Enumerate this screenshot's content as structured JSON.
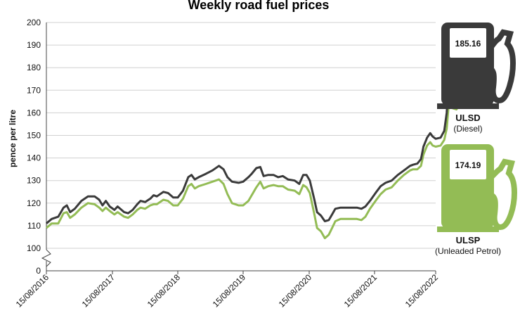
{
  "chart_data": {
    "type": "line",
    "title": "Weekly road fuel prices",
    "xlabel": "",
    "ylabel": "pence per litre",
    "x_ticks": [
      "15/08/2016",
      "15/08/2017",
      "15/08/2018",
      "15/08/2019",
      "15/08/2020",
      "15/08/2021",
      "15/08/2022"
    ],
    "y_ticks": [
      0,
      100,
      110,
      120,
      130,
      140,
      150,
      160,
      170,
      180,
      190,
      200
    ],
    "ylim": [
      0,
      200
    ],
    "y_axis_break": true,
    "grid": true,
    "series": [
      {
        "name": "ULSD",
        "color": "#3a3a3a",
        "points": [
          [
            2016.62,
            111.0
          ],
          [
            2016.7,
            113.0
          ],
          [
            2016.8,
            114.0
          ],
          [
            2016.88,
            118.0
          ],
          [
            2016.93,
            119.0
          ],
          [
            2016.98,
            116.0
          ],
          [
            2017.05,
            117.5
          ],
          [
            2017.15,
            121.0
          ],
          [
            2017.25,
            123.0
          ],
          [
            2017.35,
            123.0
          ],
          [
            2017.42,
            121.5
          ],
          [
            2017.47,
            119.0
          ],
          [
            2017.52,
            121.0
          ],
          [
            2017.58,
            118.5
          ],
          [
            2017.65,
            117.0
          ],
          [
            2017.7,
            118.5
          ],
          [
            2017.8,
            116.0
          ],
          [
            2017.86,
            115.5
          ],
          [
            2017.93,
            117.0
          ],
          [
            2018.0,
            119.5
          ],
          [
            2018.05,
            121.0
          ],
          [
            2018.12,
            120.5
          ],
          [
            2018.2,
            122.0
          ],
          [
            2018.25,
            123.5
          ],
          [
            2018.3,
            123.0
          ],
          [
            2018.4,
            125.0
          ],
          [
            2018.47,
            124.5
          ],
          [
            2018.55,
            122.5
          ],
          [
            2018.62,
            122.5
          ],
          [
            2018.7,
            125.5
          ],
          [
            2018.78,
            131.5
          ],
          [
            2018.83,
            132.5
          ],
          [
            2018.88,
            130.5
          ],
          [
            2018.94,
            131.5
          ],
          [
            2019.05,
            133.0
          ],
          [
            2019.15,
            134.5
          ],
          [
            2019.25,
            136.5
          ],
          [
            2019.32,
            135.0
          ],
          [
            2019.38,
            131.5
          ],
          [
            2019.45,
            129.5
          ],
          [
            2019.55,
            129.0
          ],
          [
            2019.62,
            129.5
          ],
          [
            2019.7,
            131.5
          ],
          [
            2019.75,
            133.0
          ],
          [
            2019.82,
            135.5
          ],
          [
            2019.88,
            136.0
          ],
          [
            2019.93,
            132.0
          ],
          [
            2020.0,
            132.5
          ],
          [
            2020.08,
            132.5
          ],
          [
            2020.15,
            131.5
          ],
          [
            2020.22,
            132.0
          ],
          [
            2020.3,
            130.5
          ],
          [
            2020.4,
            130.0
          ],
          [
            2020.47,
            128.5
          ],
          [
            2020.53,
            132.5
          ],
          [
            2020.58,
            132.5
          ],
          [
            2020.63,
            130.0
          ],
          [
            2020.7,
            121.5
          ],
          [
            2020.74,
            116.0
          ],
          [
            2020.8,
            114.5
          ],
          [
            2020.86,
            112.0
          ],
          [
            2020.92,
            112.5
          ],
          [
            2020.97,
            115.0
          ],
          [
            2021.02,
            117.5
          ],
          [
            2021.1,
            118.0
          ],
          [
            2021.2,
            118.0
          ],
          [
            2021.35,
            118.0
          ],
          [
            2021.42,
            117.5
          ],
          [
            2021.48,
            118.5
          ],
          [
            2021.55,
            121.0
          ],
          [
            2021.65,
            125.0
          ],
          [
            2021.72,
            127.5
          ],
          [
            2021.8,
            129.0
          ],
          [
            2021.9,
            130.0
          ],
          [
            2022.0,
            132.5
          ],
          [
            2022.1,
            134.5
          ],
          [
            2022.2,
            136.5
          ],
          [
            2022.25,
            137.0
          ],
          [
            2022.32,
            137.5
          ],
          [
            2022.38,
            139.5
          ],
          [
            2022.42,
            145.0
          ],
          [
            2022.48,
            149.0
          ],
          [
            2022.53,
            151.0
          ],
          [
            2022.57,
            149.5
          ],
          [
            2022.62,
            148.5
          ],
          [
            2022.7,
            149.0
          ],
          [
            2022.76,
            152.0
          ],
          [
            2022.8,
            160.0
          ],
          [
            2022.835,
            175.0
          ],
          [
            2022.86,
            176.0
          ],
          [
            2022.9,
            175.5
          ],
          [
            2022.96,
            177.0
          ],
          [
            2023.02,
            180.0
          ],
          [
            2023.07,
            185.0
          ],
          [
            2023.11,
            193.0
          ],
          [
            2023.15,
            199.0
          ],
          [
            2023.18,
            199.0
          ],
          [
            2023.21,
            196.0
          ],
          [
            2023.24,
            190.0
          ],
          [
            2023.27,
            185.0
          ]
        ]
      },
      {
        "name": "ULSP",
        "color": "#93bc55",
        "points": [
          [
            2016.62,
            109.0
          ],
          [
            2016.7,
            111.0
          ],
          [
            2016.8,
            111.0
          ],
          [
            2016.88,
            115.5
          ],
          [
            2016.93,
            116.0
          ],
          [
            2016.98,
            113.5
          ],
          [
            2017.05,
            115.0
          ],
          [
            2017.15,
            118.0
          ],
          [
            2017.25,
            120.0
          ],
          [
            2017.35,
            119.5
          ],
          [
            2017.42,
            118.0
          ],
          [
            2017.47,
            116.5
          ],
          [
            2017.52,
            118.0
          ],
          [
            2017.58,
            116.5
          ],
          [
            2017.65,
            115.0
          ],
          [
            2017.7,
            116.0
          ],
          [
            2017.8,
            114.0
          ],
          [
            2017.86,
            113.5
          ],
          [
            2017.93,
            115.0
          ],
          [
            2018.0,
            117.0
          ],
          [
            2018.05,
            118.0
          ],
          [
            2018.12,
            117.5
          ],
          [
            2018.2,
            119.0
          ],
          [
            2018.25,
            119.5
          ],
          [
            2018.3,
            119.5
          ],
          [
            2018.4,
            121.5
          ],
          [
            2018.47,
            121.0
          ],
          [
            2018.55,
            119.0
          ],
          [
            2018.62,
            119.0
          ],
          [
            2018.7,
            122.0
          ],
          [
            2018.78,
            127.5
          ],
          [
            2018.83,
            128.5
          ],
          [
            2018.88,
            126.5
          ],
          [
            2018.94,
            127.5
          ],
          [
            2019.05,
            128.5
          ],
          [
            2019.15,
            129.5
          ],
          [
            2019.25,
            130.5
          ],
          [
            2019.32,
            128.5
          ],
          [
            2019.38,
            124.0
          ],
          [
            2019.45,
            120.0
          ],
          [
            2019.55,
            119.0
          ],
          [
            2019.62,
            119.0
          ],
          [
            2019.7,
            121.0
          ],
          [
            2019.75,
            123.5
          ],
          [
            2019.82,
            127.0
          ],
          [
            2019.88,
            129.5
          ],
          [
            2019.93,
            126.5
          ],
          [
            2020.0,
            127.5
          ],
          [
            2020.08,
            128.0
          ],
          [
            2020.15,
            127.5
          ],
          [
            2020.22,
            127.5
          ],
          [
            2020.3,
            126.0
          ],
          [
            2020.4,
            125.5
          ],
          [
            2020.47,
            124.0
          ],
          [
            2020.53,
            128.0
          ],
          [
            2020.58,
            127.0
          ],
          [
            2020.63,
            124.5
          ],
          [
            2020.7,
            115.0
          ],
          [
            2020.74,
            109.0
          ],
          [
            2020.8,
            107.5
          ],
          [
            2020.86,
            104.5
          ],
          [
            2020.92,
            106.0
          ],
          [
            2020.97,
            109.0
          ],
          [
            2021.02,
            112.0
          ],
          [
            2021.1,
            113.0
          ],
          [
            2021.2,
            113.0
          ],
          [
            2021.35,
            113.0
          ],
          [
            2021.42,
            112.5
          ],
          [
            2021.48,
            114.0
          ],
          [
            2021.55,
            117.5
          ],
          [
            2021.65,
            121.5
          ],
          [
            2021.72,
            124.0
          ],
          [
            2021.8,
            126.0
          ],
          [
            2021.9,
            127.0
          ],
          [
            2022.0,
            130.0
          ],
          [
            2022.1,
            132.5
          ],
          [
            2022.2,
            134.5
          ],
          [
            2022.25,
            135.0
          ],
          [
            2022.32,
            135.0
          ],
          [
            2022.38,
            136.5
          ],
          [
            2022.42,
            141.5
          ],
          [
            2022.48,
            145.5
          ],
          [
            2022.53,
            147.0
          ],
          [
            2022.57,
            145.5
          ],
          [
            2022.62,
            145.0
          ],
          [
            2022.7,
            145.5
          ],
          [
            2022.76,
            148.0
          ],
          [
            2022.8,
            153.0
          ],
          [
            2022.835,
            164.0
          ],
          [
            2022.86,
            165.0
          ],
          [
            2022.9,
            162.0
          ],
          [
            2022.96,
            161.5
          ],
          [
            2023.02,
            164.0
          ],
          [
            2023.07,
            172.0
          ],
          [
            2023.11,
            184.0
          ],
          [
            2023.15,
            191.0
          ],
          [
            2023.18,
            191.0
          ],
          [
            2023.21,
            187.0
          ],
          [
            2023.24,
            180.0
          ],
          [
            2023.27,
            174.19
          ]
        ]
      }
    ]
  },
  "pumps": [
    {
      "name": "ULSD",
      "subtitle": "(Diesel)",
      "value": "185.16",
      "color": "#3a3a3a"
    },
    {
      "name": "ULSP",
      "subtitle": "(Unleaded Petrol)",
      "value": "174.19",
      "color": "#93bc55"
    }
  ]
}
